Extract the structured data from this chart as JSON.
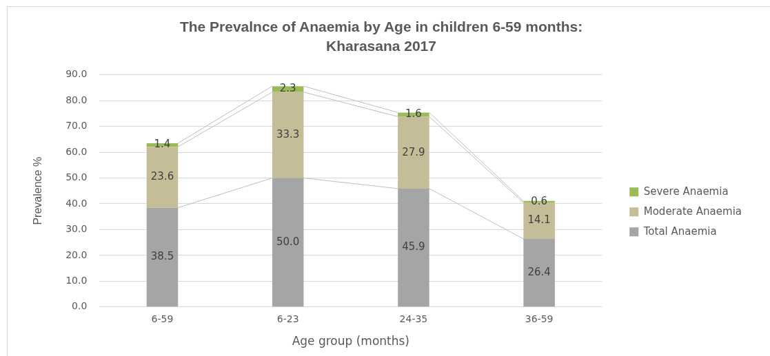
{
  "chart_data": {
    "type": "bar",
    "title": "The Prevalnce of Anaemia by Age in children 6-59 months: Kharasana 2017",
    "xlabel": "Age group (months)",
    "ylabel": "Prevalence %",
    "categories": [
      "6-59",
      "6-23",
      "24-35",
      "36-59"
    ],
    "stacked": true,
    "series": [
      {
        "name": "Total Anaemia",
        "color": "#a5a5a5",
        "values": [
          38.5,
          50.0,
          45.9,
          26.4
        ],
        "value_labels": [
          "38.5",
          "50.0",
          "45.9",
          "26.4"
        ]
      },
      {
        "name": "Moderate Anaemia",
        "color": "#c4bd97",
        "values": [
          23.6,
          33.3,
          27.9,
          14.1
        ],
        "value_labels": [
          "23.6",
          "33.3",
          "27.9",
          "14.1"
        ]
      },
      {
        "name": "Severe Anaemia",
        "color": "#9bbb59",
        "values": [
          1.4,
          2.3,
          1.6,
          0.6
        ],
        "value_labels": [
          "1.4",
          "2.3",
          "1.6",
          "0.6"
        ]
      }
    ],
    "ylim": [
      0,
      90
    ],
    "yticks": [
      {
        "value": 0,
        "label": "0.0"
      },
      {
        "value": 10,
        "label": "10.0"
      },
      {
        "value": 20,
        "label": "20.0"
      },
      {
        "value": 30,
        "label": "30.0"
      },
      {
        "value": 40,
        "label": "40.0"
      },
      {
        "value": 50,
        "label": "50.0"
      },
      {
        "value": 60,
        "label": "60.0"
      },
      {
        "value": 70,
        "label": "70.0"
      },
      {
        "value": 80,
        "label": "80.0"
      },
      {
        "value": 90,
        "label": "90.0"
      }
    ],
    "grid": "y",
    "legend": "right"
  }
}
